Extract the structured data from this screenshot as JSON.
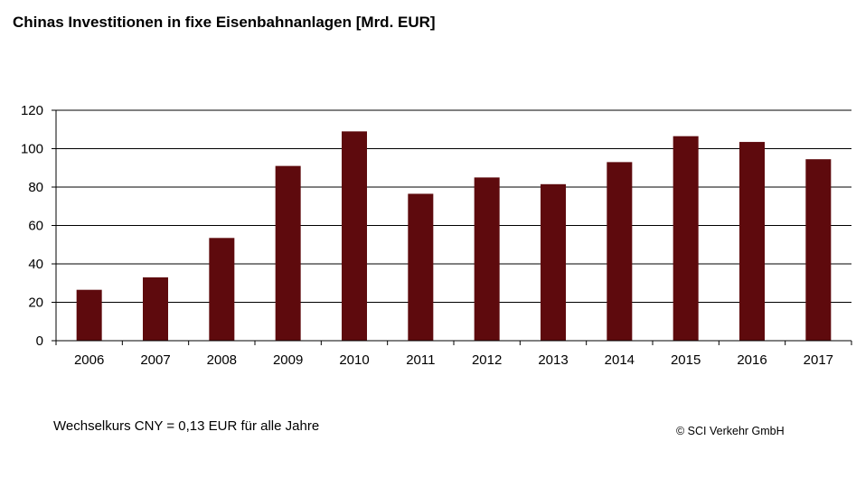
{
  "title": "Chinas Investitionen in fixe Eisenbahnanlagen [Mrd. EUR]",
  "footnote": "Wechselkurs CNY = 0,13 EUR für alle Jahre",
  "copyright": "© SCI Verkehr GmbH",
  "colors": {
    "bar": "#5e0a0d",
    "grid": "#000000"
  },
  "chart_data": {
    "type": "bar",
    "title": "Chinas Investitionen in fixe Eisenbahnanlagen [Mrd. EUR]",
    "categories": [
      "2006",
      "2007",
      "2008",
      "2009",
      "2010",
      "2011",
      "2012",
      "2013",
      "2014",
      "2015",
      "2016",
      "2017"
    ],
    "values": [
      26.5,
      33,
      53.5,
      91,
      109,
      76.5,
      85,
      81.5,
      93,
      106.5,
      103.5,
      94.5
    ],
    "xlabel": "",
    "ylabel": "",
    "ylim": [
      0,
      120
    ],
    "yticks": [
      0,
      20,
      40,
      60,
      80,
      100,
      120
    ],
    "grid": true,
    "legend": "none"
  }
}
